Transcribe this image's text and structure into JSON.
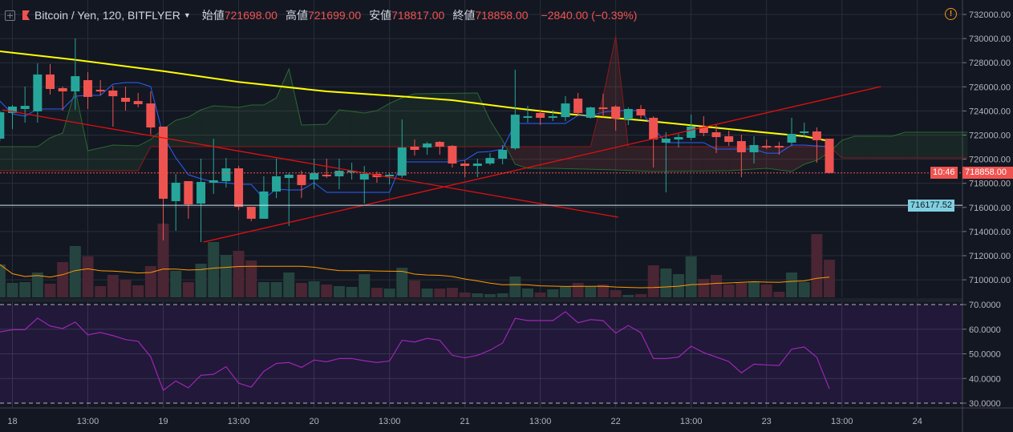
{
  "header": {
    "symbol": "Bitcoin / Yen, 120, BITFLYER",
    "open_label": "始値",
    "open_value": "721698.00",
    "high_label": "高値",
    "high_value": "721699.00",
    "low_label": "安値",
    "low_value": "718817.00",
    "close_label": "終値",
    "close_value": "718858.00",
    "change": "−2840.00 (−0.39%)",
    "alert_icon": "!"
  },
  "colors": {
    "up": "#26a69a",
    "down": "#ef5350",
    "ma": "#ffff00",
    "tenkan": "#2962ff",
    "rsi": "#9c27b0",
    "vol_ma": "#ff9800"
  },
  "badges": {
    "last_price": "718858.00",
    "countdown": "10:46",
    "line_price": "716177.52"
  },
  "chart_data": {
    "type": "candlestick",
    "title": "Bitcoin / Yen, 120, BITFLYER",
    "price_ticks": [
      "732000.00",
      "730000.00",
      "728000.00",
      "726000.00",
      "724000.00",
      "722000.00",
      "720000.00",
      "718000.00",
      "716000.00",
      "714000.00",
      "712000.00",
      "710000.00"
    ],
    "ylim": [
      710000,
      732000
    ],
    "x_ticks": [
      {
        "i": 0,
        "label": "18"
      },
      {
        "i": 6,
        "label": "13:00"
      },
      {
        "i": 12,
        "label": "19"
      },
      {
        "i": 18,
        "label": "13:00"
      },
      {
        "i": 24,
        "label": "20"
      },
      {
        "i": 30,
        "label": "13:00"
      },
      {
        "i": 36,
        "label": "21"
      },
      {
        "i": 42,
        "label": "13:00"
      },
      {
        "i": 48,
        "label": "22"
      },
      {
        "i": 54,
        "label": "13:00"
      },
      {
        "i": 60,
        "label": "23"
      },
      {
        "i": 66,
        "label": "13:00"
      },
      {
        "i": 72,
        "label": "24"
      }
    ],
    "candles_ohlc": [
      [
        721700,
        724000,
        721500,
        723890
      ],
      [
        723830,
        724490,
        722500,
        724360
      ],
      [
        724160,
        726020,
        723030,
        724420
      ],
      [
        723960,
        727950,
        723030,
        727020
      ],
      [
        727020,
        727880,
        725360,
        725820
      ],
      [
        725890,
        726020,
        724030,
        725620
      ],
      [
        725620,
        730010,
        724090,
        726880
      ],
      [
        726550,
        727220,
        724160,
        725160
      ],
      [
        725750,
        726550,
        725290,
        725620
      ],
      [
        725690,
        726090,
        722700,
        725220
      ],
      [
        725090,
        726020,
        724030,
        724760
      ],
      [
        724820,
        725490,
        724290,
        724560
      ],
      [
        724620,
        725620,
        722030,
        722630
      ],
      [
        722700,
        722700,
        713260,
        716720
      ],
      [
        716520,
        718780,
        714060,
        718050
      ],
      [
        718180,
        718180,
        715060,
        716250
      ],
      [
        716320,
        720040,
        713130,
        718110
      ],
      [
        718050,
        721700,
        717120,
        718250
      ],
      [
        718180,
        720100,
        717650,
        719240
      ],
      [
        719240,
        719440,
        715790,
        716050
      ],
      [
        716050,
        716050,
        714860,
        715060
      ],
      [
        715060,
        718580,
        715060,
        717320
      ],
      [
        717320,
        720040,
        716780,
        718580
      ],
      [
        718440,
        718840,
        714460,
        718710
      ],
      [
        718710,
        719040,
        716780,
        717850
      ],
      [
        718310,
        720040,
        717510,
        718840
      ],
      [
        718710,
        720040,
        718440,
        718580
      ],
      [
        718580,
        720040,
        717510,
        719040
      ],
      [
        718910,
        719710,
        718310,
        719040
      ],
      [
        718310,
        719440,
        716320,
        718780
      ],
      [
        718780,
        718980,
        718050,
        718510
      ],
      [
        718580,
        718840,
        717910,
        718710
      ],
      [
        718640,
        723290,
        718440,
        720970
      ],
      [
        721040,
        721630,
        720300,
        720770
      ],
      [
        720970,
        721430,
        720370,
        721300
      ],
      [
        721430,
        721500,
        720370,
        721040
      ],
      [
        721100,
        721170,
        719310,
        719640
      ],
      [
        719640,
        719910,
        718510,
        719440
      ],
      [
        719440,
        720040,
        718510,
        719640
      ],
      [
        719640,
        720500,
        719510,
        720100
      ],
      [
        720040,
        721170,
        719570,
        720770
      ],
      [
        720900,
        727420,
        720770,
        723690
      ],
      [
        723430,
        724420,
        723030,
        723560
      ],
      [
        723830,
        724030,
        722830,
        723430
      ],
      [
        723430,
        724090,
        723160,
        723560
      ],
      [
        723490,
        725220,
        723160,
        724620
      ],
      [
        725020,
        725490,
        723560,
        723830
      ],
      [
        723430,
        724360,
        723360,
        724290
      ],
      [
        724290,
        725420,
        723490,
        724230
      ],
      [
        724360,
        724490,
        722370,
        723360
      ],
      [
        723300,
        724290,
        722830,
        724160
      ],
      [
        724160,
        724490,
        723360,
        723630
      ],
      [
        723430,
        723560,
        719310,
        721630
      ],
      [
        721370,
        722230,
        717250,
        721700
      ],
      [
        721630,
        722100,
        720970,
        721830
      ],
      [
        721770,
        723690,
        721570,
        722700
      ],
      [
        722700,
        723560,
        721900,
        722170
      ],
      [
        722230,
        722900,
        720500,
        721830
      ],
      [
        721900,
        722370,
        721100,
        721430
      ],
      [
        721500,
        722030,
        718510,
        720570
      ],
      [
        720570,
        721900,
        719640,
        721170
      ],
      [
        721100,
        721630,
        720840,
        721040
      ],
      [
        721100,
        721430,
        720370,
        720970
      ],
      [
        721370,
        723430,
        721100,
        722100
      ],
      [
        722170,
        723030,
        721830,
        722300
      ],
      [
        722300,
        722630,
        719710,
        721570
      ],
      [
        721698,
        721699,
        718817,
        718858
      ]
    ],
    "first_candle_index": -1,
    "volume_relative": [
      41,
      18,
      19,
      31,
      17,
      44,
      64,
      51,
      14,
      28,
      22,
      15,
      39,
      92,
      33,
      19,
      42,
      69,
      53,
      58,
      46,
      19,
      19,
      31,
      18,
      20,
      16,
      14,
      13,
      29,
      12,
      11,
      37,
      21,
      11,
      11,
      12,
      6,
      5,
      4,
      5,
      26,
      11,
      6,
      10,
      13,
      18,
      13,
      16,
      9,
      3,
      4,
      40,
      36,
      29,
      51,
      23,
      28,
      16,
      18,
      19,
      16,
      7,
      31,
      19,
      79,
      47
    ],
    "moving_average": [
      [
        -1,
        728943
      ],
      [
        5,
        728240
      ],
      [
        12,
        727300
      ],
      [
        18,
        726400
      ],
      [
        25,
        725620
      ],
      [
        31,
        725200
      ],
      [
        35,
        724890
      ],
      [
        40,
        724225
      ],
      [
        44,
        723760
      ],
      [
        50,
        723229
      ],
      [
        57,
        722500
      ],
      [
        63,
        721900
      ],
      [
        65,
        721500
      ]
    ],
    "conversion_line": [
      724820,
      723760,
      723560,
      724160,
      724160,
      724160,
      725220,
      725290,
      725290,
      726220,
      726350,
      726350,
      726020,
      721900,
      720110,
      718710,
      718380,
      718110,
      718050,
      717910,
      717910,
      716720,
      717510,
      717450,
      717450,
      718050,
      717250,
      717250,
      717250,
      717250,
      717250,
      717250,
      719770,
      719770,
      719770,
      719770,
      719770,
      719910,
      720570,
      720640,
      720840,
      722960,
      722960,
      722960,
      722960,
      722960,
      723630,
      723630,
      723890,
      724030,
      724030,
      724030,
      722560,
      721370,
      721370,
      721370,
      721370,
      720840,
      720840,
      720840,
      720840,
      720500,
      720500,
      721170,
      721170,
      721100,
      721040
    ],
    "cloud_span_a": [
      [
        -1,
        721036
      ],
      [
        2,
        721036
      ],
      [
        3,
        721767
      ],
      [
        4,
        722165
      ],
      [
        5,
        725754
      ],
      [
        6,
        720703
      ],
      [
        8,
        721169
      ],
      [
        10,
        721102
      ],
      [
        11,
        721634
      ],
      [
        12,
        722498
      ],
      [
        13,
        723229
      ],
      [
        14,
        723494
      ],
      [
        15,
        724092
      ],
      [
        16,
        724425
      ],
      [
        18,
        724292
      ],
      [
        19,
        724491
      ],
      [
        20,
        724491
      ],
      [
        21,
        725089
      ],
      [
        22,
        727481
      ],
      [
        23,
        722830
      ],
      [
        25,
        722896
      ],
      [
        26,
        724092
      ],
      [
        28,
        723827
      ],
      [
        29,
        724026
      ],
      [
        30,
        724624
      ],
      [
        31,
        725089
      ],
      [
        32,
        725421
      ],
      [
        37,
        725488
      ],
      [
        38,
        723229
      ],
      [
        39,
        721567
      ],
      [
        40,
        719574
      ],
      [
        41,
        719242
      ],
      [
        43,
        719242
      ],
      [
        48,
        719109
      ],
      [
        51,
        718976
      ],
      [
        57,
        719042
      ],
      [
        60,
        719242
      ],
      [
        62,
        718976
      ],
      [
        63,
        719574
      ],
      [
        64,
        719906
      ],
      [
        65,
        720571
      ],
      [
        66,
        721567
      ],
      [
        67,
        721900
      ],
      [
        70,
        721900
      ],
      [
        71,
        722232
      ],
      [
        76,
        722232
      ]
    ],
    "cloud_span_b": [
      [
        -1,
        719042
      ],
      [
        10,
        719042
      ],
      [
        11,
        721036
      ],
      [
        46,
        721036
      ],
      [
        47,
        725222
      ],
      [
        48,
        730206
      ],
      [
        49,
        721036
      ],
      [
        65,
        721036
      ],
      [
        66,
        720105
      ],
      [
        76,
        720105
      ]
    ],
    "trend_lines": [
      [
        [
          -0.8,
          724090
        ],
        [
          48.2,
          715190
        ]
      ],
      [
        [
          15.2,
          713130
        ],
        [
          69.1,
          726020
        ]
      ]
    ],
    "horizontal_line": 716177.52,
    "last_price": 718858,
    "rsi": {
      "ticks": [
        "70.0000",
        "60.0000",
        "50.0000",
        "40.0000",
        "30.0000"
      ],
      "upper": 70,
      "lower": 30,
      "values": [
        58.9,
        59.8,
        59.8,
        64.5,
        61.3,
        60.3,
        62.9,
        57.7,
        58.7,
        57.4,
        55.8,
        55.1,
        48.8,
        35.2,
        39.0,
        36.2,
        41.3,
        41.7,
        44.8,
        38.1,
        36.5,
        42.9,
        46.1,
        46.5,
        44.5,
        47.5,
        46.8,
        48.1,
        48.1,
        47.2,
        46.5,
        47.1,
        55.5,
        54.8,
        56.3,
        55.5,
        49.4,
        48.4,
        49.4,
        51.5,
        54.4,
        64.4,
        63.5,
        63.5,
        63.5,
        67.1,
        62.6,
        63.9,
        63.5,
        58.4,
        61.5,
        58.6,
        48.1,
        48.1,
        48.7,
        53.1,
        50.5,
        48.7,
        46.9,
        42.3,
        45.8,
        45.5,
        45.3,
        51.9,
        52.8,
        48.6,
        35.8
      ]
    }
  }
}
